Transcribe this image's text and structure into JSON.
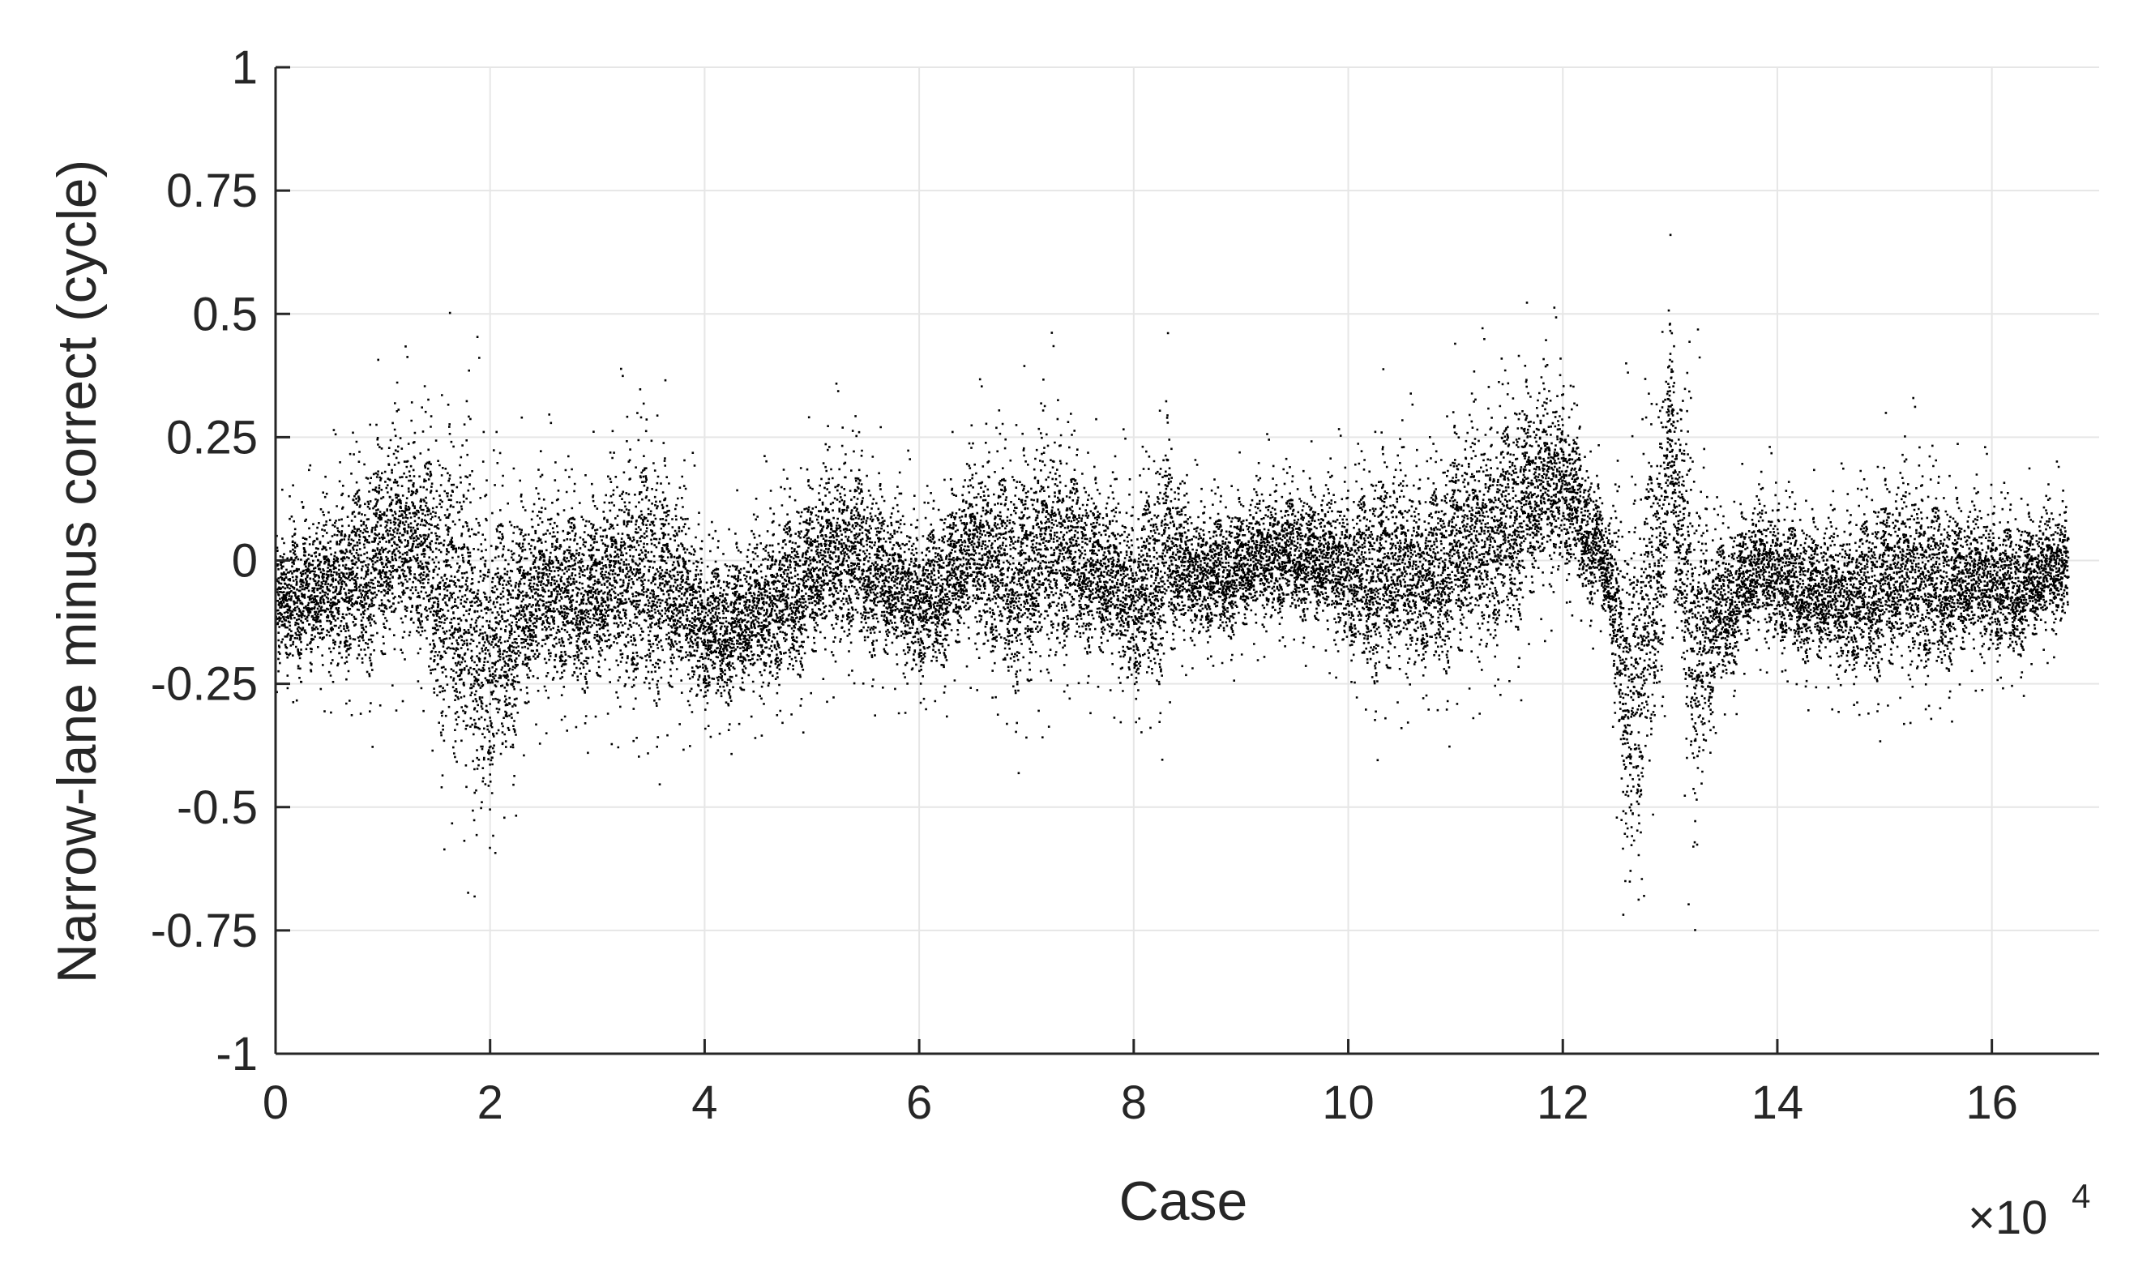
{
  "chart_data": {
    "type": "scatter",
    "title": "",
    "xlabel": "Case",
    "ylabel": "Narrow-lane minus correct (cycle)",
    "x_multiplier_label": "×10",
    "x_multiplier_exponent": "4",
    "xlim": [
      0,
      170000
    ],
    "ylim": [
      -1,
      1
    ],
    "x_ticks": [
      0,
      20000,
      40000,
      60000,
      80000,
      100000,
      120000,
      140000,
      160000
    ],
    "x_tick_labels": [
      "0",
      "2",
      "4",
      "6",
      "8",
      "10",
      "12",
      "14",
      "16"
    ],
    "y_ticks": [
      -1,
      -0.75,
      -0.5,
      -0.25,
      0,
      0.25,
      0.5,
      0.75,
      1
    ],
    "y_tick_labels": [
      "-1",
      "-0.75",
      "-0.5",
      "-0.25",
      "0",
      "0.25",
      "0.5",
      "0.75",
      "1"
    ],
    "grid": true,
    "marker_color": "#000000",
    "n_points_approx": 167000,
    "x_max_case": 167000,
    "envelope": {
      "x": [
        0,
        5000,
        10000,
        13000,
        17000,
        19000,
        22000,
        25000,
        30000,
        33500,
        35000,
        40000,
        45000,
        50000,
        54000,
        58000,
        60000,
        65000,
        70000,
        72000,
        75000,
        80000,
        83000,
        85000,
        90000,
        95000,
        100000,
        103000,
        107000,
        110000,
        113000,
        116000,
        120000,
        124000,
        126000,
        128000,
        130000,
        132000,
        134000,
        138000,
        142000,
        146000,
        150000,
        154000,
        158000,
        162000,
        167000
      ],
      "upper": [
        0.14,
        0.25,
        0.48,
        0.42,
        0.61,
        0.44,
        0.35,
        0.3,
        0.3,
        0.45,
        0.5,
        0.14,
        0.2,
        0.34,
        0.38,
        0.25,
        0.2,
        0.36,
        0.45,
        0.48,
        0.35,
        0.25,
        0.52,
        0.2,
        0.25,
        0.27,
        0.27,
        0.44,
        0.3,
        0.5,
        0.47,
        0.58,
        0.5,
        0.2,
        0.42,
        0.55,
        0.72,
        0.58,
        0.2,
        0.24,
        0.22,
        0.2,
        0.34,
        0.33,
        0.24,
        0.22,
        0.2
      ],
      "lower": [
        -0.3,
        -0.35,
        -0.4,
        -0.3,
        -0.75,
        -0.78,
        -0.55,
        -0.4,
        -0.4,
        -0.47,
        -0.48,
        -0.4,
        -0.4,
        -0.35,
        -0.3,
        -0.35,
        -0.35,
        -0.3,
        -0.47,
        -0.4,
        -0.3,
        -0.4,
        -0.42,
        -0.25,
        -0.25,
        -0.2,
        -0.3,
        -0.43,
        -0.35,
        -0.4,
        -0.36,
        -0.3,
        -0.15,
        -0.2,
        -0.98,
        -0.7,
        -0.2,
        -0.91,
        -0.4,
        -0.25,
        -0.3,
        -0.35,
        -0.38,
        -0.38,
        -0.3,
        -0.3,
        -0.2
      ]
    }
  }
}
